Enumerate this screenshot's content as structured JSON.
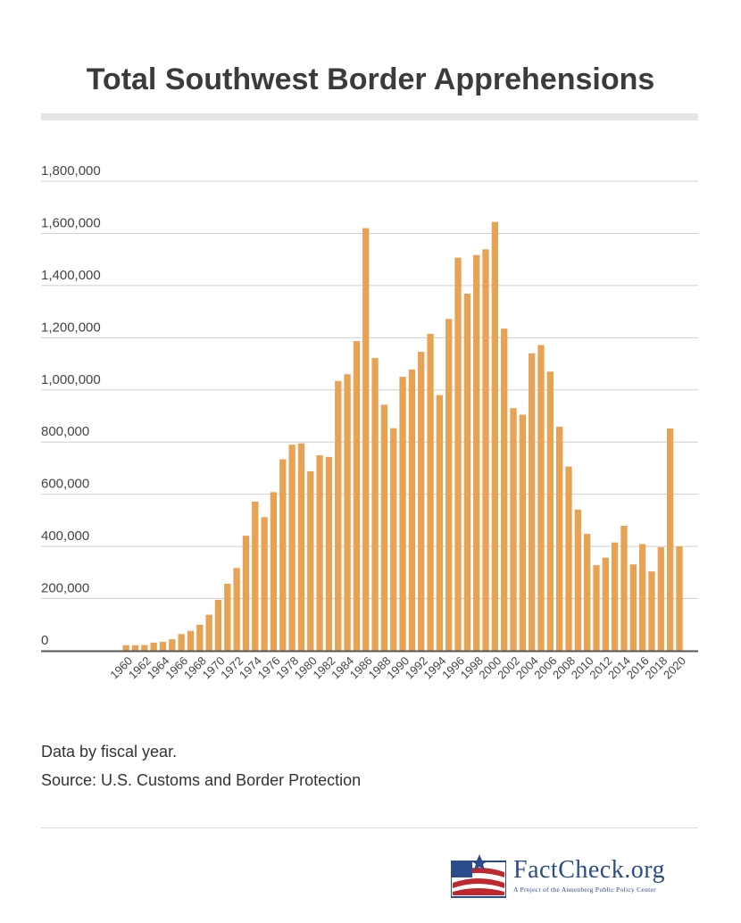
{
  "title": "Total Southwest Border Apprehensions",
  "notes": {
    "line1": "Data by fiscal year.",
    "line2": "Source: U.S. Customs and Border Protection"
  },
  "logo": {
    "name": "FactCheck.org",
    "tagline": "A Project of the Annenberg Public Policy Center"
  },
  "colors": {
    "bar": "#e8a254",
    "grid": "#cfcfcf",
    "axis": "#555555",
    "tick_text": "#444444"
  },
  "chart_data": {
    "type": "bar",
    "title": "Total Southwest Border Apprehensions",
    "xlabel": "",
    "ylabel": "",
    "ylim": [
      0,
      1800000
    ],
    "grid": true,
    "yticks": [
      0,
      200000,
      400000,
      600000,
      800000,
      1000000,
      1200000,
      1400000,
      1600000,
      1800000
    ],
    "ytick_labels": [
      "0",
      "200,000",
      "400,000",
      "600,000",
      "800,000",
      "1,000,000",
      "1,200,000",
      "1,400,000",
      "1,600,000",
      "1,800,000"
    ],
    "categories": [
      "1960",
      "1961",
      "1962",
      "1963",
      "1964",
      "1965",
      "1966",
      "1967",
      "1968",
      "1969",
      "1970",
      "1971",
      "1972",
      "1973",
      "1974",
      "1975",
      "1976",
      "1977",
      "1978",
      "1979",
      "1980",
      "1981",
      "1982",
      "1983",
      "1984",
      "1985",
      "1986",
      "1987",
      "1988",
      "1989",
      "1990",
      "1991",
      "1992",
      "1993",
      "1994",
      "1995",
      "1996",
      "1997",
      "1998",
      "1999",
      "2000",
      "2001",
      "2002",
      "2003",
      "2004",
      "2005",
      "2006",
      "2007",
      "2008",
      "2009",
      "2010",
      "2011",
      "2012",
      "2013",
      "2014",
      "2015",
      "2016",
      "2017",
      "2018",
      "2019",
      "2020"
    ],
    "xtick_labels": [
      "1960",
      "1962",
      "1964",
      "1966",
      "1968",
      "1970",
      "1972",
      "1974",
      "1976",
      "1978",
      "1980",
      "1982",
      "1984",
      "1986",
      "1988",
      "1990",
      "1992",
      "1994",
      "1996",
      "1998",
      "2000",
      "2002",
      "2004",
      "2006",
      "2008",
      "2010",
      "2012",
      "2014",
      "2016",
      "2018",
      "2020"
    ],
    "values": [
      21000,
      21000,
      22000,
      31000,
      34000,
      44000,
      64000,
      76000,
      100000,
      138000,
      195000,
      257000,
      317000,
      441000,
      572000,
      512000,
      608000,
      734000,
      790000,
      795000,
      688000,
      749000,
      743000,
      1034000,
      1060000,
      1187000,
      1620000,
      1122000,
      943000,
      853000,
      1050000,
      1078000,
      1146000,
      1215000,
      980000,
      1272000,
      1507000,
      1369000,
      1517000,
      1539000,
      1644000,
      1235000,
      930000,
      905000,
      1140000,
      1172000,
      1070000,
      859000,
      706000,
      541000,
      448000,
      328000,
      357000,
      415000,
      479000,
      331000,
      409000,
      304000,
      397000,
      852000,
      400000
    ]
  }
}
